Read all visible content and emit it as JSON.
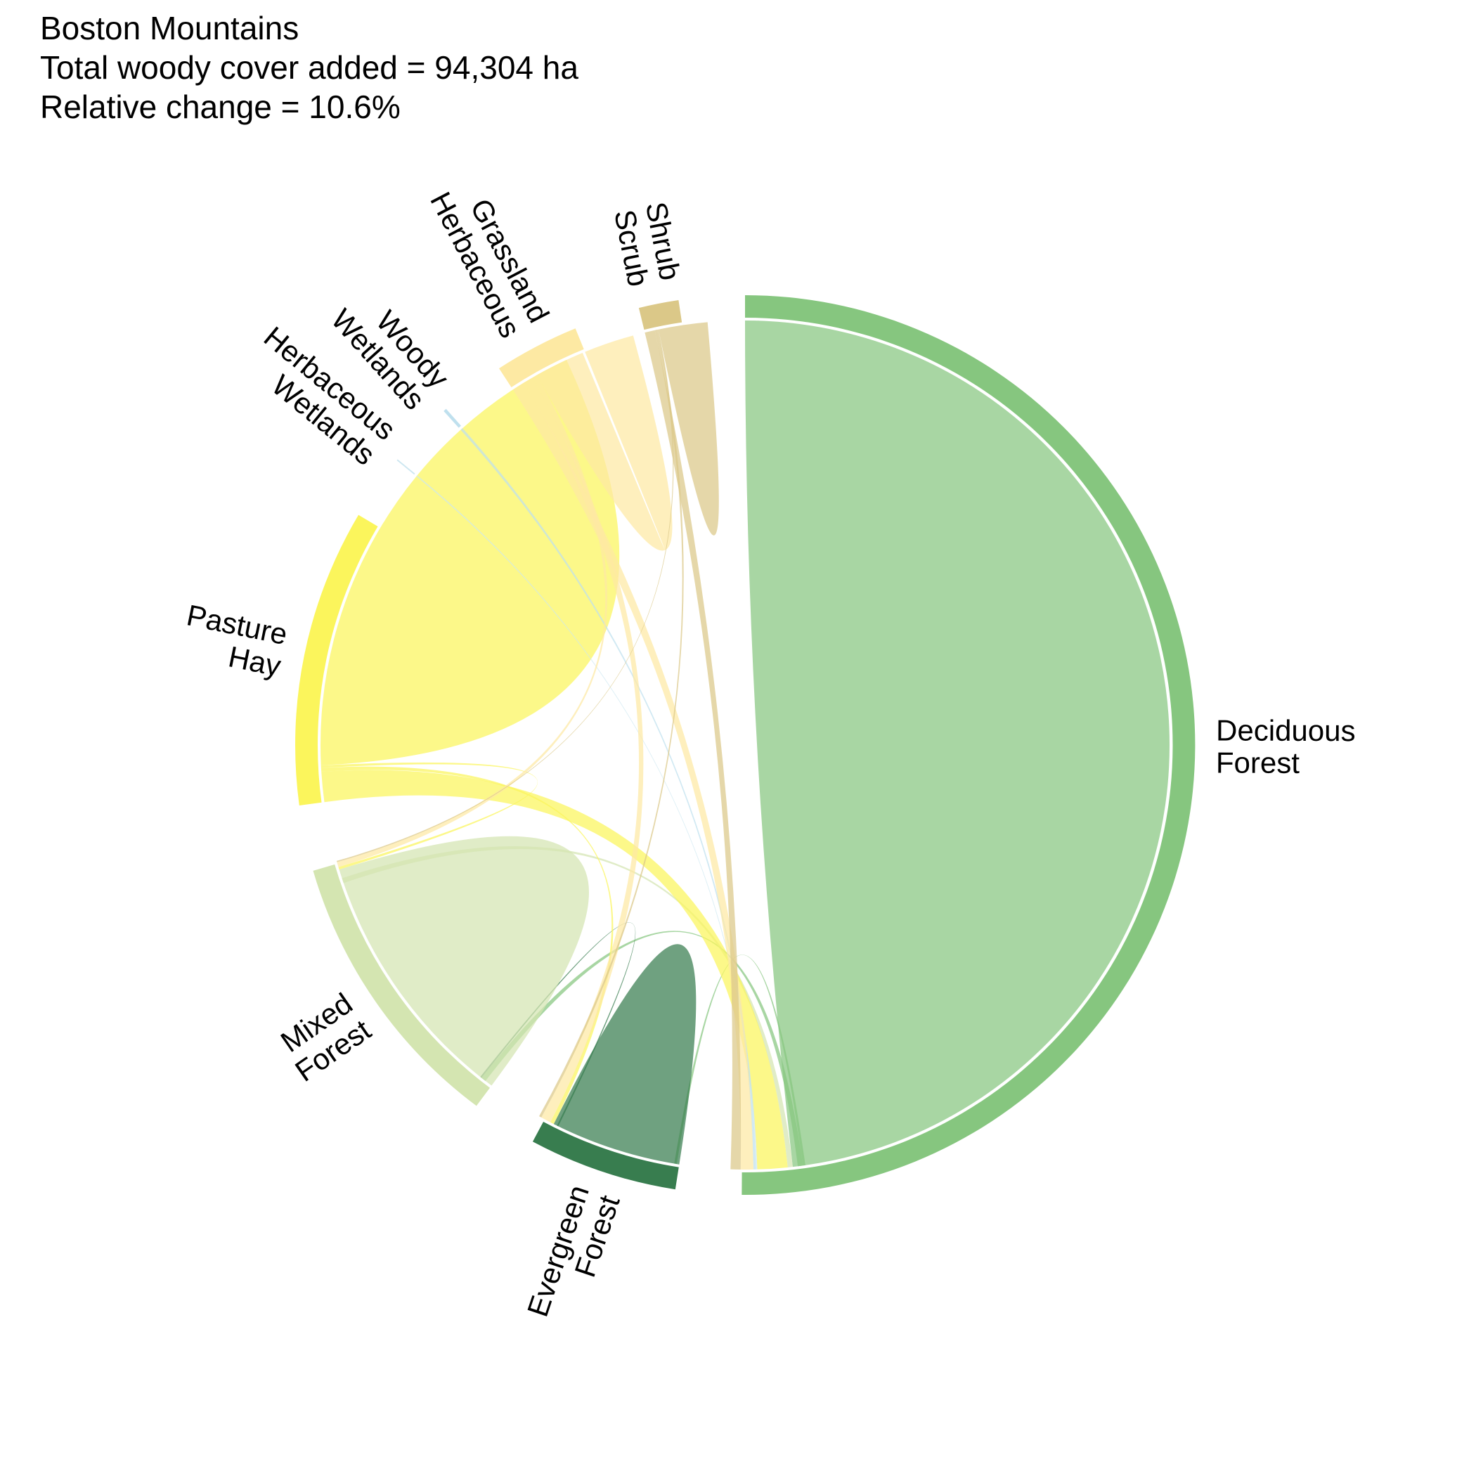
{
  "title_lines": [
    "Boston Mountains",
    "Total woody cover added = 94,304 ha",
    "Relative change = 10.6%"
  ],
  "chart_data": {
    "type": "chord",
    "title": "Boston Mountains",
    "subtitle": [
      "Total woody cover added = 94,304 ha",
      "Relative change = 10.6%"
    ],
    "region": "Boston Mountains",
    "total_woody_cover_added_ha": 94304,
    "relative_change_percent": 10.6,
    "sectors": [
      {
        "id": "deciduous",
        "label_lines": [
          "Deciduous",
          "Forest"
        ],
        "color": "#86c67f",
        "outflow": 0.5,
        "inflow": 52
      },
      {
        "id": "evergreen",
        "label_lines": [
          "Evergreen",
          "Forest"
        ],
        "color": "#387d4f",
        "outflow": 0.1,
        "inflow": 5.5
      },
      {
        "id": "mixed",
        "label_lines": [
          "Mixed",
          "Forest"
        ],
        "color": "#d4e5b1",
        "outflow": 0.3,
        "inflow": 10.5
      },
      {
        "id": "pasture",
        "label_lines": [
          "Pasture",
          "Hay"
        ],
        "color": "#fbf55c",
        "outflow": 11.2,
        "inflow": 0
      },
      {
        "id": "herb_wet",
        "label_lines": [
          "Herbaceous",
          "Wetlands"
        ],
        "color": "#cde7f1",
        "outflow": 0.05,
        "inflow": 0
      },
      {
        "id": "woody_wet",
        "label_lines": [
          "Woody",
          "Wetlands"
        ],
        "color": "#bfe0ee",
        "outflow": 0.12,
        "inflow": 0
      },
      {
        "id": "grass",
        "label_lines": [
          "Grassland",
          "Herbaceous"
        ],
        "color": "#fde9a3",
        "outflow": 3.2,
        "inflow": 0
      },
      {
        "id": "shrub",
        "label_lines": [
          "Shrub",
          "Scrub"
        ],
        "color": "#dbc888",
        "outflow": 1.5,
        "inflow": 0
      }
    ],
    "flows": [
      {
        "from": "deciduous",
        "to": "deciduous",
        "value": 50
      },
      {
        "from": "deciduous",
        "to": "evergreen",
        "value": 0.1
      },
      {
        "from": "deciduous",
        "to": "mixed",
        "value": 0.2
      },
      {
        "from": "evergreen",
        "to": "evergreen",
        "value": 5
      },
      {
        "from": "evergreen",
        "to": "mixed",
        "value": 0.06
      },
      {
        "from": "mixed",
        "to": "mixed",
        "value": 10
      },
      {
        "from": "mixed",
        "to": "deciduous",
        "value": 0.2
      },
      {
        "from": "pasture",
        "to": "deciduous",
        "value": 1.2
      },
      {
        "from": "pasture",
        "to": "evergreen",
        "value": 0.15
      },
      {
        "from": "pasture",
        "to": "mixed",
        "value": 0.1
      },
      {
        "from": "pasture",
        "to": "pasture",
        "value": 10
      },
      {
        "from": "herb_wet",
        "to": "deciduous",
        "value": 0.05
      },
      {
        "from": "woody_wet",
        "to": "deciduous",
        "value": 0.1
      },
      {
        "from": "grass",
        "to": "deciduous",
        "value": 0.5
      },
      {
        "from": "grass",
        "to": "evergreen",
        "value": 0.4
      },
      {
        "from": "grass",
        "to": "mixed",
        "value": 0.2
      },
      {
        "from": "grass",
        "to": "grass",
        "value": 2
      },
      {
        "from": "shrub",
        "to": "deciduous",
        "value": 0.4
      },
      {
        "from": "shrub",
        "to": "evergreen",
        "value": 0.1
      },
      {
        "from": "shrub",
        "to": "mixed",
        "value": 0.05
      },
      {
        "from": "shrub",
        "to": "shrub",
        "value": 1
      }
    ],
    "legend": "none",
    "grid": false
  }
}
